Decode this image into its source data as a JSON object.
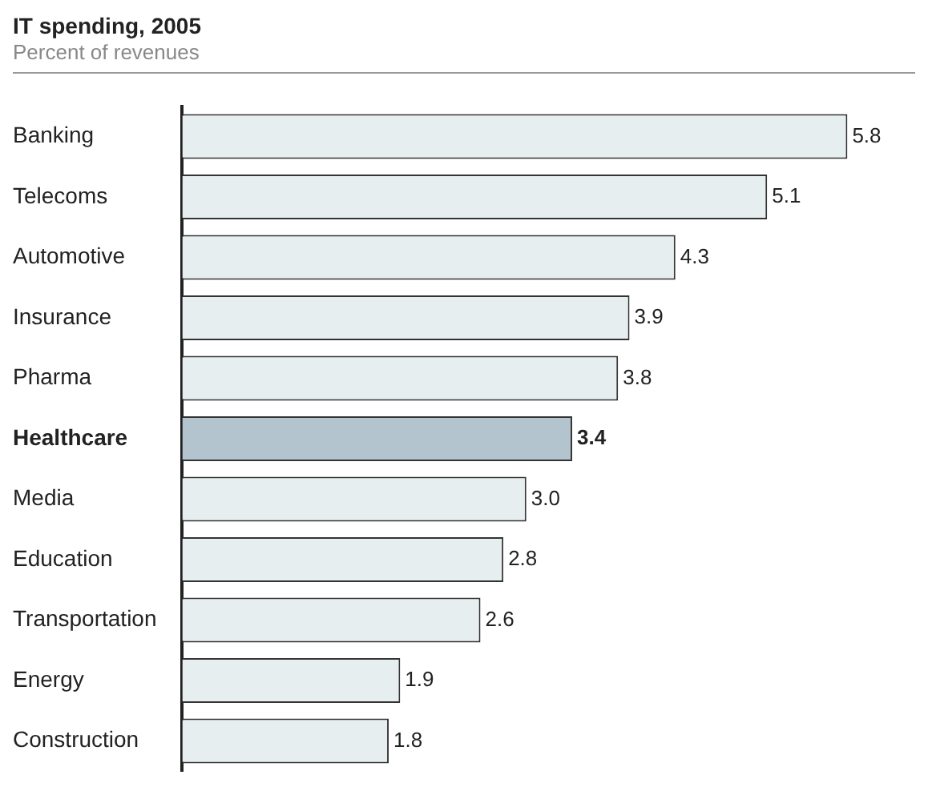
{
  "chart_data": {
    "type": "bar",
    "orientation": "horizontal",
    "title": "IT spending, 2005",
    "subtitle": "Percent of revenues",
    "categories": [
      "Banking",
      "Telecoms",
      "Automotive",
      "Insurance",
      "Pharma",
      "Healthcare",
      "Media",
      "Education",
      "Transportation",
      "Energy",
      "Construction"
    ],
    "values": [
      5.8,
      5.1,
      4.3,
      3.9,
      3.8,
      3.4,
      3.0,
      2.8,
      2.6,
      1.9,
      1.8
    ],
    "value_labels": [
      "5.8",
      "5.1",
      "4.3",
      "3.9",
      "3.8",
      "3.4",
      "3.0",
      "2.8",
      "2.6",
      "1.9",
      "1.8"
    ],
    "colors": [
      "#e6eef0",
      "#e6eef0",
      "#e6eef0",
      "#e6eef0",
      "#e6eef0",
      "#b4c4ce",
      "#e6eef0",
      "#e6eef0",
      "#e6eef0",
      "#e6eef0",
      "#e6eef0"
    ],
    "grid": false,
    "legend": false
  }
}
